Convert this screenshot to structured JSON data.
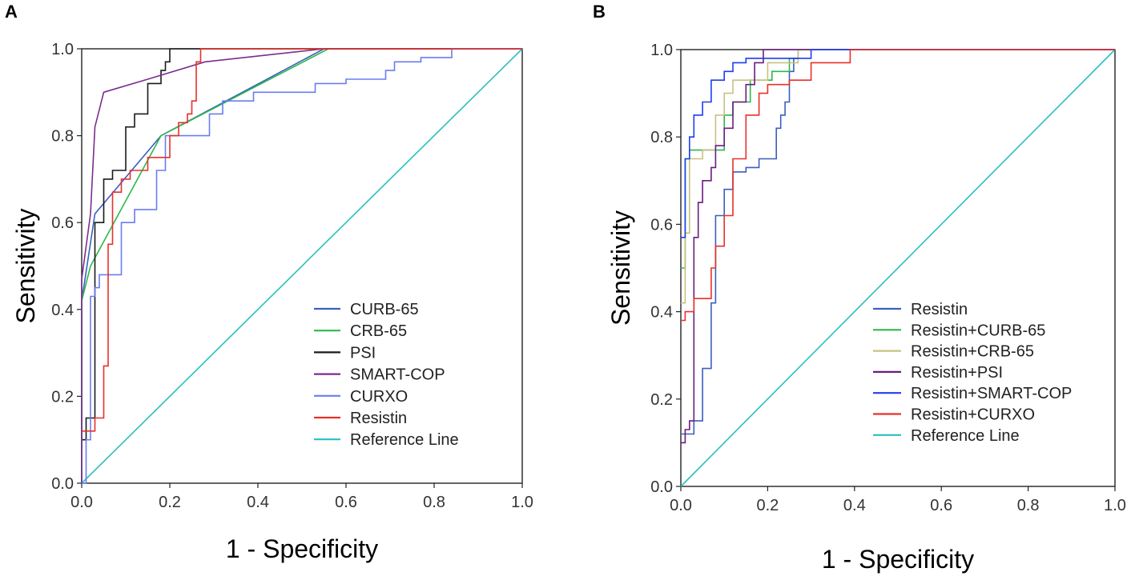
{
  "chart_data": [
    {
      "panel": "A",
      "type": "line",
      "xlabel": "1 - Specificity",
      "ylabel": "Sensitivity",
      "xlim": [
        0,
        1
      ],
      "ylim": [
        0,
        1
      ],
      "xticks": [
        "0.0",
        "0.2",
        "0.4",
        "0.6",
        "0.8",
        "1.0"
      ],
      "yticks": [
        "0.0",
        "0.2",
        "0.4",
        "0.6",
        "0.8",
        "1.0"
      ],
      "legend_position": "bottom-right",
      "series": [
        {
          "name": "CURB-65",
          "color": "#3a5fbf",
          "x": [
            0,
            0,
            0.03,
            0.18,
            0.55,
            1.0
          ],
          "y": [
            0,
            0.42,
            0.62,
            0.8,
            1.0,
            1.0
          ]
        },
        {
          "name": "CRB-65",
          "color": "#2db84a",
          "x": [
            0,
            0,
            0.02,
            0.18,
            0.56,
            1.0
          ],
          "y": [
            0,
            0.42,
            0.5,
            0.8,
            1.0,
            1.0
          ]
        },
        {
          "name": "PSI",
          "color": "#1a1a1a",
          "x": [
            0,
            0.01,
            0.01,
            0.03,
            0.03,
            0.05,
            0.05,
            0.07,
            0.07,
            0.09,
            0.09,
            0.1,
            0.1,
            0.12,
            0.12,
            0.15,
            0.15,
            0.18,
            0.18,
            0.19,
            0.19,
            0.2,
            0.2,
            1.0
          ],
          "y": [
            0.1,
            0.1,
            0.15,
            0.15,
            0.6,
            0.6,
            0.7,
            0.7,
            0.72,
            0.72,
            0.72,
            0.72,
            0.82,
            0.82,
            0.85,
            0.85,
            0.92,
            0.92,
            0.95,
            0.95,
            0.97,
            0.97,
            1.0,
            1.0
          ]
        },
        {
          "name": "SMART-COP",
          "color": "#7b2d8e",
          "x": [
            0,
            0,
            0.02,
            0.03,
            0.05,
            0.15,
            0.28,
            0.55,
            1.0
          ],
          "y": [
            0,
            0.47,
            0.62,
            0.82,
            0.9,
            0.93,
            0.97,
            1.0,
            1.0
          ]
        },
        {
          "name": "CURXO",
          "color": "#6b7cf0",
          "x": [
            0,
            0.01,
            0.01,
            0.02,
            0.02,
            0.03,
            0.03,
            0.04,
            0.04,
            0.09,
            0.09,
            0.12,
            0.12,
            0.17,
            0.17,
            0.19,
            0.19,
            0.29,
            0.29,
            0.32,
            0.32,
            0.39,
            0.39,
            0.53,
            0.53,
            0.6,
            0.6,
            0.69,
            0.69,
            0.71,
            0.71,
            0.77,
            0.77,
            0.84,
            0.84,
            1.0
          ],
          "y": [
            0,
            0,
            0.1,
            0.1,
            0.43,
            0.43,
            0.45,
            0.45,
            0.48,
            0.48,
            0.6,
            0.6,
            0.63,
            0.63,
            0.72,
            0.72,
            0.8,
            0.8,
            0.85,
            0.85,
            0.88,
            0.88,
            0.9,
            0.9,
            0.92,
            0.92,
            0.93,
            0.93,
            0.95,
            0.95,
            0.97,
            0.97,
            0.98,
            0.98,
            1.0,
            1.0
          ]
        },
        {
          "name": "Resistin",
          "color": "#e8302a",
          "x": [
            0,
            0,
            0.03,
            0.03,
            0.05,
            0.05,
            0.06,
            0.06,
            0.07,
            0.07,
            0.09,
            0.09,
            0.11,
            0.11,
            0.15,
            0.15,
            0.2,
            0.2,
            0.22,
            0.22,
            0.24,
            0.24,
            0.25,
            0.25,
            0.26,
            0.26,
            0.27,
            0.27,
            1.0
          ],
          "y": [
            0.12,
            0.12,
            0.12,
            0.15,
            0.15,
            0.27,
            0.27,
            0.55,
            0.55,
            0.67,
            0.67,
            0.7,
            0.7,
            0.72,
            0.72,
            0.75,
            0.75,
            0.8,
            0.8,
            0.83,
            0.83,
            0.85,
            0.85,
            0.88,
            0.88,
            0.97,
            0.97,
            1.0,
            1.0
          ]
        },
        {
          "name": "Reference Line",
          "color": "#2abfbf",
          "x": [
            0,
            1
          ],
          "y": [
            0,
            1
          ]
        }
      ]
    },
    {
      "panel": "B",
      "type": "line",
      "xlabel": "1 - Specificity",
      "ylabel": "Sensitivity",
      "xlim": [
        0,
        1
      ],
      "ylim": [
        0,
        1
      ],
      "xticks": [
        "0.0",
        "0.2",
        "0.4",
        "0.6",
        "0.8",
        "1.0"
      ],
      "yticks": [
        "0.0",
        "0.2",
        "0.4",
        "0.6",
        "0.8",
        "1.0"
      ],
      "legend_position": "bottom-right",
      "series": [
        {
          "name": "Resistin",
          "color": "#3a5fbf",
          "x": [
            0,
            0,
            0.03,
            0.03,
            0.05,
            0.05,
            0.07,
            0.07,
            0.08,
            0.08,
            0.1,
            0.1,
            0.12,
            0.12,
            0.15,
            0.15,
            0.18,
            0.18,
            0.22,
            0.22,
            0.23,
            0.23,
            0.24,
            0.24,
            0.25,
            0.25,
            0.26,
            0.26,
            0.27,
            0.27,
            1.0
          ],
          "y": [
            0.12,
            0.12,
            0.12,
            0.15,
            0.15,
            0.27,
            0.27,
            0.42,
            0.42,
            0.62,
            0.62,
            0.68,
            0.68,
            0.72,
            0.72,
            0.73,
            0.73,
            0.75,
            0.75,
            0.82,
            0.82,
            0.85,
            0.85,
            0.88,
            0.88,
            0.95,
            0.95,
            0.98,
            0.98,
            1.0,
            1.0
          ]
        },
        {
          "name": "Resistin+CURB-65",
          "color": "#2db84a",
          "x": [
            0,
            0,
            0.01,
            0.01,
            0.02,
            0.02,
            0.05,
            0.05,
            0.1,
            0.1,
            0.12,
            0.12,
            0.16,
            0.16,
            0.21,
            0.21,
            0.25,
            0.25,
            0.27,
            0.27,
            1.0
          ],
          "y": [
            0.5,
            0.5,
            0.5,
            0.75,
            0.75,
            0.77,
            0.77,
            0.77,
            0.77,
            0.85,
            0.85,
            0.88,
            0.88,
            0.93,
            0.93,
            0.95,
            0.95,
            0.98,
            0.98,
            1.0,
            1.0
          ]
        },
        {
          "name": "Resistin+CRB-65",
          "color": "#c8c080",
          "x": [
            0,
            0,
            0.01,
            0.01,
            0.02,
            0.02,
            0.05,
            0.05,
            0.08,
            0.08,
            0.1,
            0.1,
            0.12,
            0.12,
            0.2,
            0.2,
            0.27,
            0.27,
            1.0
          ],
          "y": [
            0.42,
            0.42,
            0.42,
            0.58,
            0.58,
            0.75,
            0.75,
            0.77,
            0.77,
            0.85,
            0.85,
            0.9,
            0.9,
            0.93,
            0.93,
            0.97,
            0.97,
            1.0,
            1.0
          ]
        },
        {
          "name": "Resistin+PSI",
          "color": "#6a1d7e",
          "x": [
            0,
            0,
            0.01,
            0.01,
            0.02,
            0.02,
            0.03,
            0.03,
            0.04,
            0.04,
            0.05,
            0.05,
            0.07,
            0.07,
            0.08,
            0.08,
            0.1,
            0.1,
            0.12,
            0.12,
            0.15,
            0.15,
            0.17,
            0.17,
            0.19,
            0.19,
            1.0
          ],
          "y": [
            0.1,
            0.1,
            0.1,
            0.13,
            0.13,
            0.15,
            0.15,
            0.57,
            0.57,
            0.65,
            0.65,
            0.7,
            0.7,
            0.73,
            0.73,
            0.78,
            0.78,
            0.82,
            0.82,
            0.88,
            0.88,
            0.92,
            0.92,
            0.97,
            0.97,
            1.0,
            1.0
          ]
        },
        {
          "name": "Resistin+SMART-COP",
          "color": "#1f3df0",
          "x": [
            0,
            0,
            0.01,
            0.01,
            0.02,
            0.02,
            0.03,
            0.03,
            0.05,
            0.05,
            0.07,
            0.07,
            0.1,
            0.1,
            0.12,
            0.12,
            0.15,
            0.15,
            0.18,
            0.18,
            0.3,
            0.3,
            1.0
          ],
          "y": [
            0.57,
            0.57,
            0.57,
            0.75,
            0.75,
            0.8,
            0.8,
            0.85,
            0.85,
            0.88,
            0.88,
            0.93,
            0.93,
            0.95,
            0.95,
            0.97,
            0.97,
            0.98,
            0.98,
            0.98,
            0.98,
            1.0,
            1.0
          ]
        },
        {
          "name": "Resistin+CURXO",
          "color": "#e8302a",
          "x": [
            0,
            0,
            0.01,
            0.01,
            0.03,
            0.03,
            0.05,
            0.05,
            0.07,
            0.07,
            0.08,
            0.08,
            0.1,
            0.1,
            0.12,
            0.12,
            0.15,
            0.15,
            0.18,
            0.18,
            0.2,
            0.2,
            0.25,
            0.25,
            0.3,
            0.3,
            0.39,
            0.39,
            1.0
          ],
          "y": [
            0.38,
            0.38,
            0.38,
            0.4,
            0.4,
            0.43,
            0.43,
            0.43,
            0.43,
            0.5,
            0.5,
            0.55,
            0.55,
            0.62,
            0.62,
            0.75,
            0.75,
            0.85,
            0.85,
            0.9,
            0.9,
            0.92,
            0.92,
            0.93,
            0.93,
            0.97,
            0.97,
            1.0,
            1.0
          ]
        },
        {
          "name": "Reference Line",
          "color": "#2abfbf",
          "x": [
            0,
            1
          ],
          "y": [
            0,
            1
          ]
        }
      ]
    }
  ]
}
